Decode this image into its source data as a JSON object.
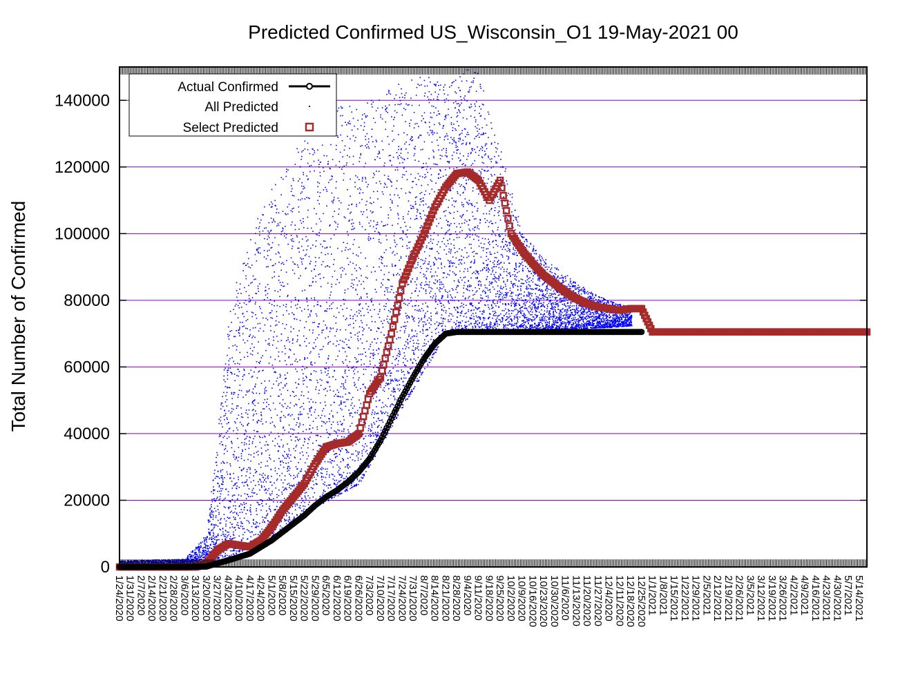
{
  "chart_data": {
    "type": "scatter",
    "title": "Predicted Confirmed US_Wisconsin_O1 19-May-2021 00",
    "ylabel": "Total Number of Confirmed",
    "xlabel": "",
    "ylim": [
      0,
      150000
    ],
    "yticks": [
      0,
      20000,
      40000,
      60000,
      80000,
      100000,
      120000,
      140000
    ],
    "ytick_labels": [
      "0",
      "20000",
      "40000",
      "60000",
      "80000",
      "100000",
      "120000",
      "140000"
    ],
    "grid": "horizontal",
    "legend_position": "top-left",
    "x_dates": [
      "1/24/2020",
      "1/31/2020",
      "2/7/2020",
      "2/14/2020",
      "2/21/2020",
      "2/28/2020",
      "3/6/2020",
      "3/13/2020",
      "3/20/2020",
      "3/27/2020",
      "4/3/2020",
      "4/10/2020",
      "4/17/2020",
      "4/24/2020",
      "5/1/2020",
      "5/8/2020",
      "5/15/2020",
      "5/22/2020",
      "5/29/2020",
      "6/5/2020",
      "6/12/2020",
      "6/19/2020",
      "6/26/2020",
      "7/3/2020",
      "7/10/2020",
      "7/17/2020",
      "7/24/2020",
      "7/31/2020",
      "8/7/2020",
      "8/14/2020",
      "8/21/2020",
      "8/28/2020",
      "9/4/2020",
      "9/11/2020",
      "9/18/2020",
      "9/25/2020",
      "10/2/2020",
      "10/9/2020",
      "10/16/2020",
      "10/23/2020",
      "10/30/2020",
      "11/6/2020",
      "11/13/2020",
      "11/20/2020",
      "11/27/2020",
      "12/4/2020",
      "12/11/2020",
      "12/18/2020",
      "12/25/2020",
      "1/1/2021",
      "1/8/2021",
      "1/15/2021",
      "1/22/2021",
      "1/29/2021",
      "2/5/2021",
      "2/12/2021",
      "2/19/2021",
      "2/26/2021",
      "3/5/2021",
      "3/12/2021",
      "3/19/2021",
      "3/26/2021",
      "4/2/2021",
      "4/9/2021",
      "4/16/2021",
      "4/23/2021",
      "4/30/2021",
      "5/7/2021",
      "5/14/2021"
    ],
    "legend": [
      {
        "name": "Actual Confirmed",
        "color": "#000000",
        "marker": "circle-line"
      },
      {
        "name": "All Predicted",
        "color": "#0000ff",
        "marker": "dot"
      },
      {
        "name": "Select Predicted",
        "color": "#a52a2a",
        "marker": "square"
      }
    ],
    "series": [
      {
        "name": "Actual Confirmed",
        "color": "#000000",
        "points": [
          [
            "1/24/2020",
            0
          ],
          [
            "3/6/2020",
            0
          ],
          [
            "3/20/2020",
            100
          ],
          [
            "3/27/2020",
            1100
          ],
          [
            "4/3/2020",
            2000
          ],
          [
            "4/10/2020",
            3000
          ],
          [
            "4/17/2020",
            4000
          ],
          [
            "4/24/2020",
            6000
          ],
          [
            "5/1/2020",
            8000
          ],
          [
            "5/8/2020",
            10500
          ],
          [
            "5/15/2020",
            13000
          ],
          [
            "5/22/2020",
            15500
          ],
          [
            "5/29/2020",
            18500
          ],
          [
            "6/5/2020",
            21000
          ],
          [
            "6/12/2020",
            23000
          ],
          [
            "6/19/2020",
            25500
          ],
          [
            "6/26/2020",
            28500
          ],
          [
            "7/3/2020",
            32500
          ],
          [
            "7/10/2020",
            38000
          ],
          [
            "7/17/2020",
            44500
          ],
          [
            "7/24/2020",
            51000
          ],
          [
            "7/31/2020",
            57000
          ],
          [
            "8/7/2020",
            62500
          ],
          [
            "8/14/2020",
            67000
          ],
          [
            "8/21/2020",
            70000
          ],
          [
            "8/28/2020",
            70500
          ],
          [
            "12/25/2020",
            70500
          ]
        ]
      },
      {
        "name": "Select Predicted",
        "color": "#a52a2a",
        "points": [
          [
            "1/24/2020",
            0
          ],
          [
            "3/13/2020",
            0
          ],
          [
            "3/20/2020",
            1000
          ],
          [
            "3/27/2020",
            5000
          ],
          [
            "4/3/2020",
            7000
          ],
          [
            "4/10/2020",
            6500
          ],
          [
            "4/17/2020",
            6000
          ],
          [
            "4/24/2020",
            8000
          ],
          [
            "5/1/2020",
            12000
          ],
          [
            "5/8/2020",
            17000
          ],
          [
            "5/15/2020",
            21000
          ],
          [
            "5/22/2020",
            25000
          ],
          [
            "5/29/2020",
            31000
          ],
          [
            "6/5/2020",
            36000
          ],
          [
            "6/12/2020",
            37000
          ],
          [
            "6/19/2020",
            37500
          ],
          [
            "6/26/2020",
            40000
          ],
          [
            "7/3/2020",
            52000
          ],
          [
            "7/10/2020",
            57000
          ],
          [
            "7/17/2020",
            70000
          ],
          [
            "7/24/2020",
            85000
          ],
          [
            "7/31/2020",
            93000
          ],
          [
            "8/7/2020",
            100000
          ],
          [
            "8/14/2020",
            108000
          ],
          [
            "8/21/2020",
            114000
          ],
          [
            "8/28/2020",
            118000
          ],
          [
            "9/4/2020",
            118500
          ],
          [
            "9/11/2020",
            116000
          ],
          [
            "9/18/2020",
            110000
          ],
          [
            "9/25/2020",
            116000
          ],
          [
            "10/2/2020",
            100000
          ],
          [
            "10/9/2020",
            95000
          ],
          [
            "10/16/2020",
            91000
          ],
          [
            "10/23/2020",
            87500
          ],
          [
            "10/30/2020",
            85000
          ],
          [
            "11/6/2020",
            82500
          ],
          [
            "11/13/2020",
            80500
          ],
          [
            "11/20/2020",
            79000
          ],
          [
            "11/27/2020",
            78000
          ],
          [
            "12/4/2020",
            77500
          ],
          [
            "12/11/2020",
            77000
          ],
          [
            "12/18/2020",
            77500
          ],
          [
            "12/25/2020",
            77500
          ],
          [
            "1/1/2021",
            70500
          ],
          [
            "5/19/2021",
            70500
          ]
        ]
      },
      {
        "name": "All Predicted",
        "color": "#0000ff",
        "envelope_upper": [
          [
            "1/24/2020",
            2000
          ],
          [
            "3/6/2020",
            2500
          ],
          [
            "3/20/2020",
            10000
          ],
          [
            "3/27/2020",
            40000
          ],
          [
            "4/3/2020",
            75000
          ],
          [
            "4/10/2020",
            90000
          ],
          [
            "4/17/2020",
            100000
          ],
          [
            "5/1/2020",
            115000
          ],
          [
            "5/15/2020",
            125000
          ],
          [
            "5/29/2020",
            135000
          ],
          [
            "6/12/2020",
            140000
          ],
          [
            "6/26/2020",
            138000
          ],
          [
            "7/10/2020",
            142000
          ],
          [
            "7/24/2020",
            146000
          ],
          [
            "8/7/2020",
            148000
          ],
          [
            "8/21/2020",
            145000
          ],
          [
            "9/4/2020",
            150000
          ],
          [
            "9/11/2020",
            148000
          ],
          [
            "9/25/2020",
            125000
          ],
          [
            "10/9/2020",
            100000
          ],
          [
            "10/23/2020",
            93000
          ],
          [
            "11/6/2020",
            88000
          ],
          [
            "11/20/2020",
            83000
          ],
          [
            "12/4/2020",
            80000
          ],
          [
            "12/18/2020",
            78000
          ]
        ],
        "envelope_lower": [
          [
            "1/24/2020",
            0
          ],
          [
            "3/20/2020",
            0
          ],
          [
            "4/3/2020",
            3000
          ],
          [
            "5/1/2020",
            9000
          ],
          [
            "5/29/2020",
            18000
          ],
          [
            "6/26/2020",
            25000
          ],
          [
            "7/24/2020",
            48000
          ],
          [
            "8/21/2020",
            70000
          ],
          [
            "9/4/2020",
            71000
          ],
          [
            "10/2/2020",
            71000
          ],
          [
            "11/6/2020",
            71500
          ],
          [
            "12/4/2020",
            72000
          ],
          [
            "12/18/2020",
            72500
          ]
        ]
      }
    ]
  }
}
